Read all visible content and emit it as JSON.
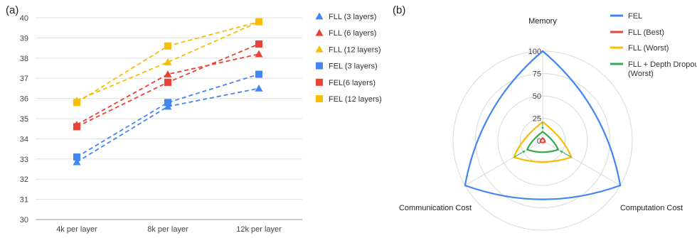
{
  "chart_data": [
    {
      "panel_label": "(a)",
      "type": "line",
      "categories": [
        "4k per layer",
        "8k per layer",
        "12k per layer"
      ],
      "ylim": [
        30,
        40
      ],
      "yticks": [
        "30",
        "31",
        "32",
        "33",
        "34",
        "35",
        "36",
        "37",
        "38",
        "39",
        "40"
      ],
      "grid": true,
      "legend_position": "right",
      "series": [
        {
          "name": "FLL (3 layers)",
          "marker": "triangle",
          "color": "#4285F4",
          "values": [
            32.85,
            35.6,
            36.5
          ]
        },
        {
          "name": "FLL (6 layers)",
          "marker": "triangle",
          "color": "#EA4335",
          "values": [
            34.7,
            37.2,
            38.2
          ]
        },
        {
          "name": "FLL (12 layers)",
          "marker": "triangle",
          "color": "#FBBC04",
          "values": [
            35.9,
            37.8,
            39.8
          ]
        },
        {
          "name": "FEL (3 layers)",
          "marker": "square",
          "color": "#4285F4",
          "values": [
            33.1,
            35.8,
            37.2
          ]
        },
        {
          "name": "FEL(6 layers)",
          "marker": "square",
          "color": "#EA4335",
          "values": [
            34.6,
            36.8,
            38.7
          ]
        },
        {
          "name": "FEL (12 layers)",
          "marker": "square",
          "color": "#FBBC04",
          "values": [
            35.8,
            38.6,
            39.8
          ]
        }
      ]
    },
    {
      "panel_label": "(b)",
      "type": "radar",
      "axes": [
        "Memory",
        "Computation Cost",
        "Communication Cost"
      ],
      "rlim": [
        0,
        100
      ],
      "rticks": [
        "0",
        "25",
        "50",
        "75",
        "100"
      ],
      "legend_position": "top-right",
      "series": [
        {
          "name": "FEL",
          "color": "#4285F4",
          "values": [
            100,
            100,
            100
          ]
        },
        {
          "name": "FLL (Best)",
          "color": "#EA4335",
          "values": [
            3,
            3,
            3
          ]
        },
        {
          "name": "FLL (Worst)",
          "color": "#FBBC04",
          "values": [
            21,
            37,
            37
          ]
        },
        {
          "name": "FLL + Depth Dropout\n(Worst)",
          "color": "#34A853",
          "values": [
            10,
            20,
            20
          ]
        }
      ]
    }
  ]
}
